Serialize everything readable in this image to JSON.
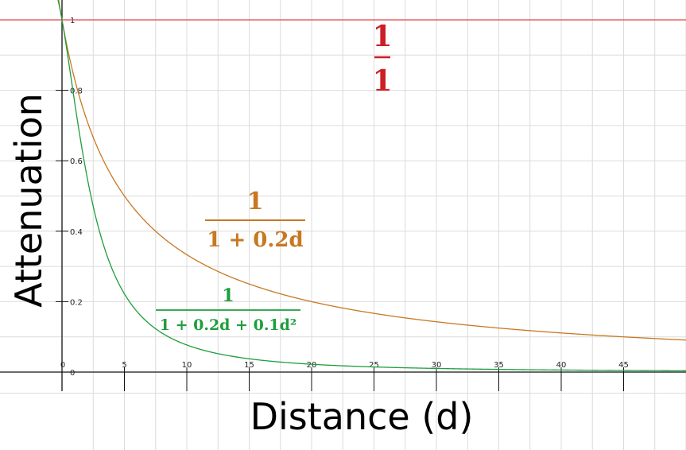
{
  "chart_data": {
    "type": "line",
    "xlabel": "Distance (d)",
    "ylabel": "Attenuation",
    "xlim": [
      0,
      50
    ],
    "ylim": [
      0,
      1
    ],
    "grid": true,
    "x_ticks": [
      "0",
      "5",
      "10",
      "15",
      "20",
      "25",
      "30",
      "35",
      "40",
      "45"
    ],
    "y_ticks": [
      "0",
      "0.2",
      "0.4",
      "0.6",
      "0.8",
      "1"
    ],
    "series": [
      {
        "name_num": "1",
        "name_den": "1",
        "formula": "constant",
        "color": "#e2454b",
        "x": [
          0,
          10,
          20,
          30,
          40,
          50
        ],
        "values": [
          1,
          1,
          1,
          1,
          1,
          1
        ]
      },
      {
        "name_num": "1",
        "name_den": "1 + 0.2d",
        "formula": "linear",
        "color": "#c87822",
        "x": [
          0,
          5,
          10,
          15,
          20,
          25,
          30,
          35,
          40,
          45,
          50
        ],
        "values": [
          1,
          0.5,
          0.333,
          0.25,
          0.2,
          0.167,
          0.143,
          0.125,
          0.111,
          0.1,
          0.091
        ]
      },
      {
        "name_num": "1",
        "name_den": "1 + 0.2d + 0.1d²",
        "formula": "quadratic",
        "color": "#1e9e3c",
        "x": [
          0,
          5,
          10,
          15,
          20,
          25,
          30,
          35,
          40,
          45,
          50
        ],
        "values": [
          1,
          0.222,
          0.077,
          0.038,
          0.022,
          0.015,
          0.01,
          0.008,
          0.006,
          0.005,
          0.004
        ]
      }
    ]
  }
}
